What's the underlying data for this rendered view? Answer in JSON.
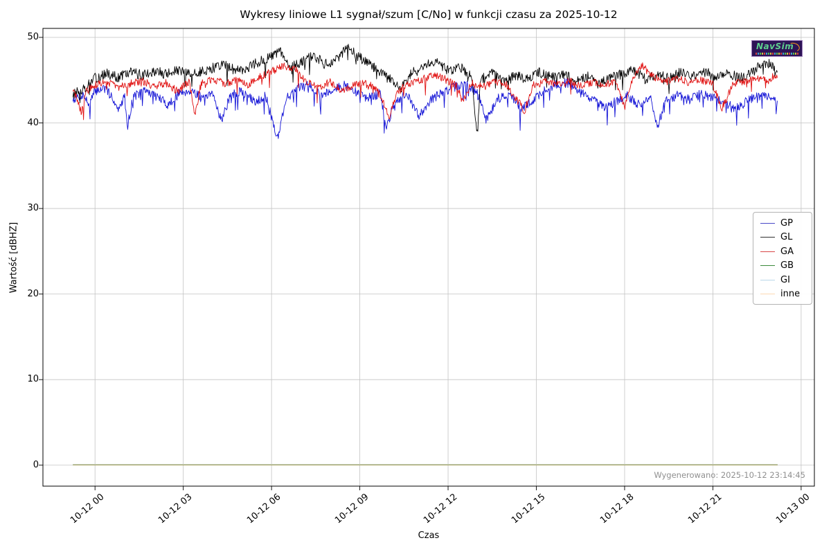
{
  "logo": {
    "text": "NavSim",
    "background": "#2e1457",
    "text_color": "#5ecf8f",
    "swoosh_color": "#ff9e1b"
  },
  "chart_data": {
    "type": "line",
    "title": "Wykresy liniowe L1 sygnał/szum [C/No] w funkcji czasu za 2025-10-12",
    "xlabel": "Czas",
    "ylabel": "Wartość [dBHZ]",
    "generated_label": "Wygenerowano: 2025-10-12 23:14:45",
    "grid": true,
    "legend_position": "center right",
    "xlim_hours": [
      -1.77,
      24.45
    ],
    "ylim": [
      -2.45,
      51.05
    ],
    "y_ticks": [
      0,
      10,
      20,
      30,
      40,
      50
    ],
    "x_ticks": [
      {
        "hour": 0,
        "label": "10-12 00"
      },
      {
        "hour": 3,
        "label": "10-12 03"
      },
      {
        "hour": 6,
        "label": "10-12 06"
      },
      {
        "hour": 9,
        "label": "10-12 09"
      },
      {
        "hour": 12,
        "label": "10-12 12"
      },
      {
        "hour": 15,
        "label": "10-12 15"
      },
      {
        "hour": 18,
        "label": "10-12 18"
      },
      {
        "hour": 21,
        "label": "10-12 21"
      },
      {
        "hour": 24,
        "label": "10-13 00"
      }
    ],
    "series": [
      {
        "name": "GP",
        "color": "#1212d6",
        "legend_color": "#4848c8",
        "opacity": 1,
        "noise": {
          "amp": 0.55,
          "spike_p": 0.05,
          "spike_mag": 2.2,
          "seed": 7
        },
        "points": [
          [
            -0.75,
            42.8
          ],
          [
            -0.4,
            43.3
          ],
          [
            -0.2,
            42.1
          ],
          [
            0,
            43.7
          ],
          [
            0.3,
            44.1
          ],
          [
            0.6,
            43.0
          ],
          [
            0.8,
            41.3
          ],
          [
            1.0,
            43.3
          ],
          [
            1.1,
            39.6
          ],
          [
            1.3,
            43.1
          ],
          [
            1.7,
            43.8
          ],
          [
            2.1,
            43.1
          ],
          [
            2.5,
            42.1
          ],
          [
            2.9,
            43.6
          ],
          [
            3.3,
            43.8
          ],
          [
            3.7,
            42.7
          ],
          [
            4.0,
            43.4
          ],
          [
            4.3,
            40.3
          ],
          [
            4.6,
            43.2
          ],
          [
            5.0,
            43.7
          ],
          [
            5.4,
            42.5
          ],
          [
            5.8,
            43.1
          ],
          [
            6.2,
            38.2
          ],
          [
            6.5,
            42.9
          ],
          [
            6.9,
            44.1
          ],
          [
            7.3,
            44.4
          ],
          [
            7.7,
            43.3
          ],
          [
            8.1,
            43.9
          ],
          [
            8.5,
            44.4
          ],
          [
            8.9,
            43.5
          ],
          [
            9.3,
            42.9
          ],
          [
            9.7,
            43.5
          ],
          [
            9.9,
            39.3
          ],
          [
            10.2,
            42.7
          ],
          [
            10.6,
            43.3
          ],
          [
            11.0,
            40.8
          ],
          [
            11.4,
            42.7
          ],
          [
            11.8,
            43.5
          ],
          [
            12.2,
            44.2
          ],
          [
            12.6,
            44.5
          ],
          [
            13.0,
            43.5
          ],
          [
            13.3,
            40.4
          ],
          [
            13.7,
            42.9
          ],
          [
            14.1,
            43.3
          ],
          [
            14.5,
            41.6
          ],
          [
            14.9,
            42.7
          ],
          [
            15.3,
            43.9
          ],
          [
            15.7,
            44.5
          ],
          [
            16.1,
            44.7
          ],
          [
            16.5,
            43.5
          ],
          [
            16.9,
            42.9
          ],
          [
            17.3,
            41.7
          ],
          [
            17.7,
            42.5
          ],
          [
            18.1,
            43.2
          ],
          [
            18.5,
            42.1
          ],
          [
            18.9,
            42.9
          ],
          [
            19.1,
            39.4
          ],
          [
            19.4,
            42.7
          ],
          [
            19.8,
            43.2
          ],
          [
            20.2,
            42.7
          ],
          [
            20.6,
            43.4
          ],
          [
            21.0,
            43.0
          ],
          [
            21.4,
            42.3
          ],
          [
            21.8,
            41.7
          ],
          [
            22.2,
            42.7
          ],
          [
            22.6,
            43.2
          ],
          [
            23.0,
            42.9
          ],
          [
            23.2,
            42.3
          ]
        ]
      },
      {
        "name": "GL",
        "color": "#000000",
        "legend_color": "#303030",
        "opacity": 1,
        "noise": {
          "amp": 0.6,
          "spike_p": 0.05,
          "spike_mag": 1.9,
          "seed": 13
        },
        "points": [
          [
            -0.75,
            43.3
          ],
          [
            -0.3,
            44.2
          ],
          [
            0,
            45.2
          ],
          [
            0.4,
            45.8
          ],
          [
            0.8,
            45.3
          ],
          [
            1.2,
            46.0
          ],
          [
            1.6,
            45.6
          ],
          [
            2.0,
            46.1
          ],
          [
            2.4,
            45.7
          ],
          [
            2.8,
            46.1
          ],
          [
            3.2,
            45.7
          ],
          [
            3.6,
            46.0
          ],
          [
            4.0,
            46.4
          ],
          [
            4.4,
            46.9
          ],
          [
            4.8,
            46.1
          ],
          [
            5.2,
            46.5
          ],
          [
            5.6,
            47.2
          ],
          [
            6.0,
            47.7
          ],
          [
            6.3,
            48.4
          ],
          [
            6.6,
            46.4
          ],
          [
            7.0,
            47.1
          ],
          [
            7.4,
            47.9
          ],
          [
            7.8,
            46.9
          ],
          [
            8.2,
            47.3
          ],
          [
            8.6,
            48.9
          ],
          [
            8.9,
            47.8
          ],
          [
            9.3,
            47.0
          ],
          [
            9.7,
            45.9
          ],
          [
            10.1,
            44.9
          ],
          [
            10.4,
            43.9
          ],
          [
            10.8,
            46.2
          ],
          [
            11.2,
            46.8
          ],
          [
            11.6,
            47.3
          ],
          [
            12.0,
            46.1
          ],
          [
            12.4,
            46.6
          ],
          [
            12.8,
            45.3
          ],
          [
            13.0,
            38.6
          ],
          [
            13.1,
            45.1
          ],
          [
            13.5,
            45.8
          ],
          [
            13.9,
            44.7
          ],
          [
            14.3,
            45.6
          ],
          [
            14.7,
            45.1
          ],
          [
            15.1,
            45.9
          ],
          [
            15.5,
            45.3
          ],
          [
            15.9,
            45.8
          ],
          [
            16.3,
            44.9
          ],
          [
            16.7,
            45.5
          ],
          [
            17.1,
            44.6
          ],
          [
            17.5,
            45.2
          ],
          [
            17.9,
            45.7
          ],
          [
            18.3,
            46.2
          ],
          [
            18.7,
            45.1
          ],
          [
            19.1,
            45.7
          ],
          [
            19.5,
            45.2
          ],
          [
            19.9,
            45.9
          ],
          [
            20.3,
            45.4
          ],
          [
            20.7,
            46.0
          ],
          [
            21.1,
            45.5
          ],
          [
            21.5,
            45.9
          ],
          [
            21.9,
            45.2
          ],
          [
            22.3,
            45.8
          ],
          [
            22.7,
            47.0
          ],
          [
            23.0,
            46.9
          ],
          [
            23.2,
            45.3
          ]
        ]
      },
      {
        "name": "GA",
        "color": "#e01010",
        "legend_color": "#d84545",
        "opacity": 1,
        "noise": {
          "amp": 0.45,
          "spike_p": 0.035,
          "spike_mag": 1.7,
          "seed": 29
        },
        "points": [
          [
            -0.75,
            43.9
          ],
          [
            -0.45,
            41.2
          ],
          [
            -0.3,
            43.7
          ],
          [
            0,
            44.4
          ],
          [
            0.4,
            44.8
          ],
          [
            0.8,
            44.2
          ],
          [
            1.2,
            44.6
          ],
          [
            1.6,
            44.9
          ],
          [
            2.0,
            44.3
          ],
          [
            2.4,
            44.7
          ],
          [
            2.8,
            43.7
          ],
          [
            3.2,
            44.8
          ],
          [
            3.4,
            40.9
          ],
          [
            3.6,
            44.6
          ],
          [
            4.0,
            45.1
          ],
          [
            4.4,
            44.6
          ],
          [
            4.8,
            45.0
          ],
          [
            5.2,
            44.5
          ],
          [
            5.6,
            45.4
          ],
          [
            6.0,
            46.0
          ],
          [
            6.4,
            46.7
          ],
          [
            6.8,
            46.3
          ],
          [
            7.2,
            44.7
          ],
          [
            7.6,
            44.2
          ],
          [
            8.0,
            44.8
          ],
          [
            8.4,
            43.7
          ],
          [
            8.8,
            44.5
          ],
          [
            9.2,
            44.8
          ],
          [
            9.6,
            43.9
          ],
          [
            10.0,
            40.9
          ],
          [
            10.3,
            43.7
          ],
          [
            10.7,
            44.6
          ],
          [
            11.1,
            45.1
          ],
          [
            11.5,
            45.6
          ],
          [
            11.9,
            45.1
          ],
          [
            12.3,
            44.3
          ],
          [
            12.5,
            42.4
          ],
          [
            12.8,
            44.6
          ],
          [
            13.2,
            44.2
          ],
          [
            13.6,
            44.8
          ],
          [
            14.0,
            44.4
          ],
          [
            14.6,
            41.4
          ],
          [
            14.9,
            44.4
          ],
          [
            15.3,
            44.8
          ],
          [
            15.7,
            44.5
          ],
          [
            16.1,
            45.0
          ],
          [
            16.5,
            44.3
          ],
          [
            16.9,
            44.8
          ],
          [
            17.3,
            44.4
          ],
          [
            17.7,
            45.0
          ],
          [
            18.0,
            41.8
          ],
          [
            18.3,
            45.3
          ],
          [
            18.6,
            46.7
          ],
          [
            19.0,
            45.3
          ],
          [
            19.4,
            44.8
          ],
          [
            19.8,
            45.2
          ],
          [
            20.2,
            44.7
          ],
          [
            20.6,
            45.0
          ],
          [
            21.0,
            44.5
          ],
          [
            21.3,
            41.6
          ],
          [
            21.7,
            44.6
          ],
          [
            22.1,
            44.8
          ],
          [
            22.5,
            45.2
          ],
          [
            22.9,
            44.9
          ],
          [
            23.1,
            45.6
          ],
          [
            23.2,
            45.4
          ]
        ]
      },
      {
        "name": "GB",
        "color": "#1f7a1f",
        "legend_color": "#3a8a3a",
        "opacity": 1,
        "noise": {
          "amp": 0,
          "spike_p": 0,
          "spike_mag": 0,
          "seed": 1
        },
        "points": [
          [
            -0.75,
            0.05
          ],
          [
            23.2,
            0.05
          ]
        ]
      },
      {
        "name": "GI",
        "color": "#aed4e8",
        "legend_color": "#b9d7e8",
        "opacity": 1,
        "noise": {
          "amp": 0,
          "spike_p": 0,
          "spike_mag": 0,
          "seed": 2
        },
        "points": [
          [
            -0.75,
            0.1
          ],
          [
            23.2,
            0.1
          ]
        ]
      },
      {
        "name": "inne",
        "color": "#ffa500",
        "legend_color": "#fcd9b2",
        "opacity": 0.55,
        "noise": {
          "amp": 0,
          "spike_p": 0,
          "spike_mag": 0,
          "seed": 3
        },
        "points": [
          [
            -0.75,
            0.05
          ],
          [
            23.2,
            0.05
          ]
        ]
      }
    ]
  }
}
